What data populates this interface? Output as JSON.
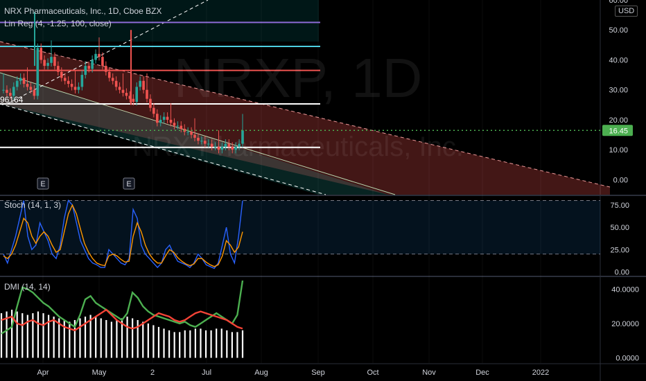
{
  "header": {
    "title": "NRX Pharmaceuticals, Inc., 1D, Cboe BZX",
    "indicator": "Lin Reg (4, -1.25, 100, close)",
    "currency": "USD",
    "watermark_symbol": "NRXP, 1D",
    "watermark_name": "NRX Pharmaceuticals, Inc.",
    "left_label": "96164"
  },
  "colors": {
    "bull": "#26a69a",
    "bear": "#ef5350",
    "price_line": "#4caf50",
    "stoch_k": "#2962ff",
    "stoch_d": "#ff9800",
    "dmi_plus": "#4caf50",
    "dmi_minus": "#f44336",
    "adx": "#ffffff"
  },
  "chart_data": [
    {
      "type": "candlestick",
      "name": "price",
      "y_ticks": [
        "60.00",
        "50.00",
        "40.00",
        "30.00",
        "20.00",
        "10.00",
        "0.00"
      ],
      "ylim": [
        -5,
        60
      ],
      "last_price": "16.45",
      "horizontal_levels": [
        {
          "value": 52.5,
          "color": "#8e6bd6"
        },
        {
          "value": 44.5,
          "color": "#4dd0e1"
        },
        {
          "value": 36.5,
          "color": "#ef5350"
        },
        {
          "value": 25.3,
          "color": "#ffffff"
        },
        {
          "value": 10.8,
          "color": "#ffffff"
        }
      ],
      "earnings_markers": [
        "E",
        "E"
      ],
      "x_ticks": [
        "Apr",
        "May",
        "2",
        "Jul",
        "Aug",
        "Sep",
        "Oct",
        "Nov",
        "Dec",
        "2022"
      ],
      "candles_close": [
        30,
        29,
        28,
        31,
        33,
        34,
        32,
        31,
        30,
        28,
        44,
        40,
        38,
        39,
        41,
        38,
        36,
        34,
        33,
        32,
        31,
        30,
        31,
        35,
        38,
        37,
        40,
        42,
        41,
        38,
        36,
        34,
        33,
        31,
        30,
        29,
        28,
        27,
        26,
        31,
        33,
        30,
        27,
        24,
        22,
        19,
        20,
        21,
        20,
        19,
        18,
        18,
        17,
        16,
        16,
        15,
        14,
        13,
        13,
        12,
        12,
        11,
        11,
        10,
        11,
        12,
        11,
        10,
        11,
        12,
        16.45
      ],
      "channel": {
        "start": [
          25,
          0
        ],
        "end": [
          -2,
          100
        ]
      }
    },
    {
      "type": "line",
      "name": "Stoch",
      "label": "Stoch (14, 1, 3)",
      "y_ticks": [
        "75.00",
        "50.00",
        "25.00",
        "0.00"
      ],
      "ylim": [
        -5,
        85
      ],
      "bands": [
        20,
        80
      ],
      "series": [
        {
          "name": "K",
          "values": [
            20,
            10,
            25,
            40,
            60,
            80,
            40,
            25,
            30,
            55,
            45,
            35,
            20,
            15,
            30,
            60,
            80,
            75,
            55,
            35,
            25,
            15,
            10,
            8,
            5,
            5,
            25,
            20,
            15,
            10,
            8,
            15,
            70,
            60,
            30,
            20,
            15,
            10,
            5,
            10,
            25,
            30,
            20,
            12,
            10,
            8,
            5,
            10,
            20,
            15,
            8,
            6,
            4,
            10,
            30,
            50,
            20,
            10,
            40,
            80
          ]
        },
        {
          "name": "D",
          "values": [
            18,
            15,
            20,
            30,
            45,
            60,
            55,
            40,
            32,
            40,
            45,
            40,
            30,
            22,
            25,
            45,
            65,
            75,
            65,
            48,
            32,
            22,
            15,
            10,
            8,
            7,
            18,
            20,
            18,
            14,
            11,
            12,
            40,
            55,
            45,
            30,
            20,
            14,
            10,
            10,
            18,
            25,
            22,
            16,
            12,
            9,
            7,
            9,
            15,
            15,
            11,
            8,
            6,
            8,
            18,
            35,
            30,
            22,
            28,
            45
          ]
        }
      ]
    },
    {
      "type": "line",
      "name": "DMI",
      "label": "DMI (14, 14)",
      "y_ticks": [
        "40.0000",
        "20.0000",
        "0.0000"
      ],
      "ylim": [
        -3,
        47
      ],
      "series": [
        {
          "name": "+DI",
          "values": [
            14,
            16,
            18,
            30,
            41,
            40,
            38,
            35,
            32,
            30,
            27,
            24,
            22,
            20,
            18,
            25,
            34,
            36,
            32,
            30,
            28,
            26,
            24,
            22,
            26,
            38,
            35,
            30,
            27,
            25,
            24,
            23,
            22,
            21,
            20,
            21,
            19,
            18,
            20,
            22,
            24,
            26,
            24,
            22,
            20,
            25,
            45
          ]
        },
        {
          "name": "-DI",
          "values": [
            22,
            23,
            24,
            20,
            19,
            21,
            22,
            20,
            19,
            21,
            22,
            20,
            18,
            17,
            16,
            18,
            20,
            22,
            24,
            26,
            28,
            25,
            22,
            20,
            18,
            17,
            18,
            20,
            22,
            24,
            26,
            25,
            24,
            22,
            21,
            22,
            24,
            26,
            27,
            26,
            25,
            24,
            23,
            22,
            20,
            18,
            17
          ]
        },
        {
          "name": "ADX",
          "values": [
            26,
            27,
            28,
            27,
            26,
            25,
            26,
            27,
            26,
            25,
            24,
            23,
            22,
            21,
            22,
            23,
            24,
            25,
            24,
            23,
            22,
            21,
            22,
            23,
            24,
            23,
            22,
            21,
            20,
            19,
            18,
            17,
            16,
            15,
            15,
            16,
            16,
            17,
            17,
            16,
            16,
            17,
            17,
            16,
            15,
            15,
            16
          ]
        }
      ]
    }
  ]
}
